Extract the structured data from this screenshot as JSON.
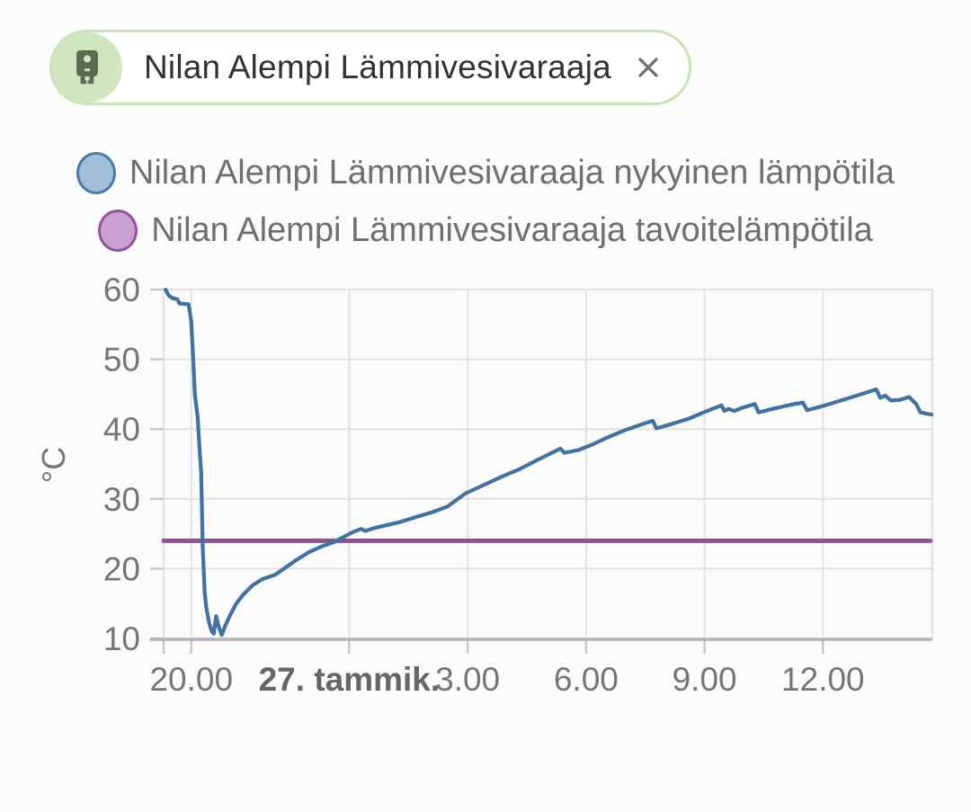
{
  "app": {
    "background": "#fbfbfb"
  },
  "filter_chip": {
    "label": "Nilan Alempi Lämmivesivaraaja",
    "icon": "water-boiler-icon",
    "background": "#ffffff",
    "border_color": "#c9e3b8",
    "avatar_bg": "#cfe6bf",
    "icon_color": "#5c6a4e",
    "text_color": "#323232",
    "close_icon_color": "#6e6e6e"
  },
  "legend": {
    "text_color": "#6f6f6f",
    "items": [
      {
        "label": "Nilan Alempi Lämmivesivaraaja nykyinen lämpötila",
        "marker_fill": "#a2bed8",
        "marker_border": "#4a7aa8"
      },
      {
        "label": "Nilan Alempi Lämmivesivaraaja tavoitelämpötila",
        "marker_fill": "#c9a0d1",
        "marker_border": "#94539f"
      }
    ]
  },
  "chart_data": {
    "type": "line",
    "title": "",
    "xlabel": "",
    "ylabel": "°C",
    "grid": true,
    "grid_color": "#e2e2e2",
    "axis_line_color": "#b3b3b3",
    "tick_color": "#c6c6c6",
    "axis_text_color": "#757575",
    "bold_axis_text_color": "#666666",
    "y_axis": {
      "label": "°C",
      "range": [
        10,
        60
      ],
      "ticks": [
        {
          "value": 10,
          "label": "10"
        },
        {
          "value": 20,
          "label": "20"
        },
        {
          "value": 30,
          "label": "30"
        },
        {
          "value": 40,
          "label": "40"
        },
        {
          "value": 50,
          "label": "50"
        },
        {
          "value": 60,
          "label": "60"
        }
      ]
    },
    "x_axis": {
      "range": [
        19.3,
        38.77
      ],
      "ticks": [
        {
          "value": 20,
          "label": "20.00",
          "bold": false
        },
        {
          "value": 24,
          "label": "27. tammik.",
          "bold": true
        },
        {
          "value": 27,
          "label": "3.00",
          "bold": false
        },
        {
          "value": 30,
          "label": "6.00",
          "bold": false
        },
        {
          "value": 33,
          "label": "9.00",
          "bold": false
        },
        {
          "value": 36,
          "label": "12.00",
          "bold": false
        }
      ]
    },
    "series": [
      {
        "name": "Nilan Alempi Lämmivesivaraaja nykyinen lämpötila",
        "color": "#44719f",
        "line_width": 4.2,
        "points": [
          [
            19.35,
            60.0
          ],
          [
            19.42,
            59.2
          ],
          [
            19.51,
            58.8
          ],
          [
            19.65,
            58.6
          ],
          [
            19.7,
            58.0
          ],
          [
            19.93,
            57.9
          ],
          [
            20.0,
            55.5
          ],
          [
            20.05,
            50.0
          ],
          [
            20.09,
            45.0
          ],
          [
            20.16,
            41.8
          ],
          [
            20.22,
            36.2
          ],
          [
            20.25,
            34.0
          ],
          [
            20.29,
            23.0
          ],
          [
            20.34,
            16.5
          ],
          [
            20.38,
            14.5
          ],
          [
            20.45,
            12.3
          ],
          [
            20.52,
            11.0
          ],
          [
            20.57,
            10.7
          ],
          [
            20.63,
            13.2
          ],
          [
            20.7,
            11.6
          ],
          [
            20.77,
            10.5
          ],
          [
            20.86,
            11.8
          ],
          [
            20.98,
            13.3
          ],
          [
            21.14,
            15.0
          ],
          [
            21.32,
            16.3
          ],
          [
            21.55,
            17.6
          ],
          [
            21.8,
            18.5
          ],
          [
            22.01,
            18.9
          ],
          [
            22.12,
            19.1
          ],
          [
            22.37,
            20.1
          ],
          [
            22.65,
            21.2
          ],
          [
            22.99,
            22.4
          ],
          [
            23.31,
            23.2
          ],
          [
            23.61,
            23.8
          ],
          [
            23.84,
            24.5
          ],
          [
            24.11,
            25.3
          ],
          [
            24.3,
            25.7
          ],
          [
            24.41,
            25.4
          ],
          [
            24.62,
            25.8
          ],
          [
            24.92,
            26.2
          ],
          [
            25.3,
            26.7
          ],
          [
            25.69,
            27.4
          ],
          [
            26.11,
            28.1
          ],
          [
            26.49,
            28.9
          ],
          [
            26.95,
            30.8
          ],
          [
            27.41,
            32.0
          ],
          [
            27.87,
            33.2
          ],
          [
            28.33,
            34.3
          ],
          [
            28.78,
            35.6
          ],
          [
            29.13,
            36.6
          ],
          [
            29.35,
            37.2
          ],
          [
            29.45,
            36.6
          ],
          [
            29.81,
            37.0
          ],
          [
            30.16,
            37.8
          ],
          [
            30.54,
            38.8
          ],
          [
            30.96,
            39.8
          ],
          [
            31.37,
            40.6
          ],
          [
            31.69,
            41.2
          ],
          [
            31.78,
            40.1
          ],
          [
            32.15,
            40.7
          ],
          [
            32.6,
            41.5
          ],
          [
            33.02,
            42.5
          ],
          [
            33.43,
            43.4
          ],
          [
            33.5,
            42.6
          ],
          [
            33.61,
            42.9
          ],
          [
            33.75,
            42.6
          ],
          [
            33.93,
            43.0
          ],
          [
            34.27,
            43.6
          ],
          [
            34.37,
            42.4
          ],
          [
            34.73,
            42.9
          ],
          [
            35.19,
            43.5
          ],
          [
            35.49,
            43.8
          ],
          [
            35.6,
            42.7
          ],
          [
            35.99,
            43.3
          ],
          [
            36.39,
            44.0
          ],
          [
            36.85,
            44.8
          ],
          [
            37.35,
            45.7
          ],
          [
            37.45,
            44.5
          ],
          [
            37.58,
            44.8
          ],
          [
            37.72,
            44.1
          ],
          [
            37.95,
            44.2
          ],
          [
            38.18,
            44.6
          ],
          [
            38.36,
            43.6
          ],
          [
            38.47,
            42.4
          ],
          [
            38.62,
            42.2
          ],
          [
            38.75,
            42.1
          ]
        ]
      },
      {
        "name": "Nilan Alempi Lämmivesivaraaja tavoitelämpötila",
        "color": "#8e5196",
        "line_width": 5,
        "points": [
          [
            19.3,
            24.0
          ],
          [
            38.72,
            24.0
          ]
        ]
      }
    ]
  }
}
